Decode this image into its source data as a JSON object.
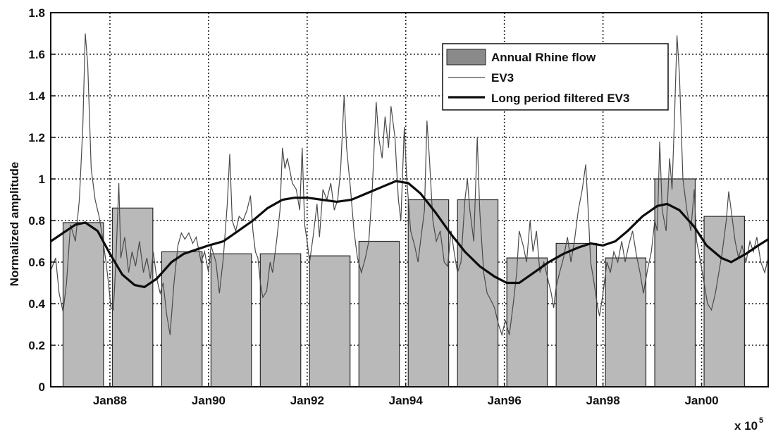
{
  "chart_data": {
    "type": "bar",
    "ylabel": "Normalized amplitude",
    "x_multiplier": "x 10",
    "x_multiplier_exponent": "5",
    "ylim": [
      0,
      1.8
    ],
    "yticks": [
      "0",
      "0.2",
      "0.4",
      "0.6",
      "0.8",
      "1",
      "1.2",
      "1.4",
      "1.6",
      "1.8"
    ],
    "x_tick_positions": [
      1988,
      1990,
      1992,
      1994,
      1996,
      1998,
      2000
    ],
    "x_tick_labels": [
      "Jan88",
      "Jan90",
      "Jan92",
      "Jan94",
      "Jan96",
      "Jan98",
      "Jan00"
    ],
    "xlim": [
      1986.8,
      2001.35
    ],
    "grid": true,
    "legend_position": "top-right",
    "bars": {
      "name": "Annual Rhine flow",
      "years": [
        1987,
        1988,
        1989,
        1990,
        1991,
        1992,
        1993,
        1994,
        1995,
        1996,
        1997,
        1998,
        1999,
        2000
      ],
      "values": [
        0.79,
        0.86,
        0.65,
        0.64,
        0.64,
        0.63,
        0.7,
        0.9,
        0.9,
        0.62,
        0.69,
        0.62,
        1.0,
        0.82
      ]
    },
    "series": [
      {
        "name": "EV3",
        "points": [
          [
            1986.8,
            0.56
          ],
          [
            1986.9,
            0.62
          ],
          [
            1986.97,
            0.45
          ],
          [
            1987.05,
            0.36
          ],
          [
            1987.12,
            0.5
          ],
          [
            1987.2,
            0.78
          ],
          [
            1987.3,
            0.7
          ],
          [
            1987.38,
            0.9
          ],
          [
            1987.45,
            1.25
          ],
          [
            1987.5,
            1.7
          ],
          [
            1987.55,
            1.55
          ],
          [
            1987.62,
            1.05
          ],
          [
            1987.7,
            0.9
          ],
          [
            1987.78,
            0.82
          ],
          [
            1987.85,
            0.72
          ],
          [
            1987.92,
            0.6
          ],
          [
            1987.97,
            0.5
          ],
          [
            1988.02,
            0.38
          ],
          [
            1988.07,
            0.37
          ],
          [
            1988.12,
            0.6
          ],
          [
            1988.18,
            0.98
          ],
          [
            1988.22,
            0.62
          ],
          [
            1988.3,
            0.72
          ],
          [
            1988.38,
            0.55
          ],
          [
            1988.45,
            0.65
          ],
          [
            1988.52,
            0.58
          ],
          [
            1988.6,
            0.7
          ],
          [
            1988.68,
            0.55
          ],
          [
            1988.75,
            0.62
          ],
          [
            1988.82,
            0.52
          ],
          [
            1988.88,
            0.65
          ],
          [
            1988.95,
            0.52
          ],
          [
            1989.02,
            0.45
          ],
          [
            1989.08,
            0.5
          ],
          [
            1989.15,
            0.35
          ],
          [
            1989.22,
            0.25
          ],
          [
            1989.3,
            0.5
          ],
          [
            1989.38,
            0.68
          ],
          [
            1989.45,
            0.74
          ],
          [
            1989.52,
            0.71
          ],
          [
            1989.6,
            0.74
          ],
          [
            1989.68,
            0.69
          ],
          [
            1989.75,
            0.72
          ],
          [
            1989.85,
            0.6
          ],
          [
            1989.92,
            0.65
          ],
          [
            1990.0,
            0.55
          ],
          [
            1990.05,
            0.68
          ],
          [
            1990.15,
            0.6
          ],
          [
            1990.22,
            0.45
          ],
          [
            1990.3,
            0.62
          ],
          [
            1990.38,
            0.88
          ],
          [
            1990.43,
            1.12
          ],
          [
            1990.48,
            0.8
          ],
          [
            1990.55,
            0.75
          ],
          [
            1990.62,
            0.82
          ],
          [
            1990.7,
            0.8
          ],
          [
            1990.78,
            0.85
          ],
          [
            1990.85,
            0.92
          ],
          [
            1990.9,
            0.75
          ],
          [
            1990.95,
            0.65
          ],
          [
            1991.0,
            0.62
          ],
          [
            1991.05,
            0.5
          ],
          [
            1991.1,
            0.43
          ],
          [
            1991.18,
            0.46
          ],
          [
            1991.25,
            0.6
          ],
          [
            1991.3,
            0.55
          ],
          [
            1991.38,
            0.7
          ],
          [
            1991.45,
            0.85
          ],
          [
            1991.5,
            1.15
          ],
          [
            1991.55,
            1.05
          ],
          [
            1991.6,
            1.1
          ],
          [
            1991.7,
            0.98
          ],
          [
            1991.78,
            0.95
          ],
          [
            1991.85,
            0.85
          ],
          [
            1991.9,
            1.15
          ],
          [
            1991.95,
            0.78
          ],
          [
            1992.0,
            0.7
          ],
          [
            1992.05,
            0.6
          ],
          [
            1992.12,
            0.72
          ],
          [
            1992.2,
            0.88
          ],
          [
            1992.25,
            0.72
          ],
          [
            1992.32,
            0.95
          ],
          [
            1992.4,
            0.9
          ],
          [
            1992.48,
            0.98
          ],
          [
            1992.55,
            0.85
          ],
          [
            1992.62,
            0.9
          ],
          [
            1992.68,
            1.05
          ],
          [
            1992.75,
            1.4
          ],
          [
            1992.8,
            1.15
          ],
          [
            1992.88,
            0.95
          ],
          [
            1992.95,
            0.75
          ],
          [
            1993.02,
            0.62
          ],
          [
            1993.1,
            0.55
          ],
          [
            1993.18,
            0.62
          ],
          [
            1993.25,
            0.7
          ],
          [
            1993.32,
            0.95
          ],
          [
            1993.4,
            1.37
          ],
          [
            1993.45,
            1.2
          ],
          [
            1993.52,
            1.1
          ],
          [
            1993.58,
            1.3
          ],
          [
            1993.65,
            1.15
          ],
          [
            1993.7,
            1.35
          ],
          [
            1993.78,
            1.2
          ],
          [
            1993.85,
            0.9
          ],
          [
            1993.9,
            0.8
          ],
          [
            1993.97,
            1.25
          ],
          [
            1994.02,
            1.0
          ],
          [
            1994.1,
            0.75
          ],
          [
            1994.18,
            0.68
          ],
          [
            1994.25,
            0.6
          ],
          [
            1994.3,
            0.7
          ],
          [
            1994.38,
            0.85
          ],
          [
            1994.43,
            1.28
          ],
          [
            1994.48,
            1.1
          ],
          [
            1994.55,
            0.8
          ],
          [
            1994.62,
            0.7
          ],
          [
            1994.7,
            0.75
          ],
          [
            1994.78,
            0.6
          ],
          [
            1994.85,
            0.58
          ],
          [
            1994.92,
            0.75
          ],
          [
            1994.98,
            0.65
          ],
          [
            1995.05,
            0.55
          ],
          [
            1995.12,
            0.6
          ],
          [
            1995.2,
            0.9
          ],
          [
            1995.25,
            1.0
          ],
          [
            1995.3,
            0.85
          ],
          [
            1995.38,
            0.7
          ],
          [
            1995.45,
            1.2
          ],
          [
            1995.5,
            0.85
          ],
          [
            1995.58,
            0.55
          ],
          [
            1995.65,
            0.45
          ],
          [
            1995.72,
            0.42
          ],
          [
            1995.8,
            0.38
          ],
          [
            1995.88,
            0.3
          ],
          [
            1995.95,
            0.25
          ],
          [
            1996.02,
            0.32
          ],
          [
            1996.1,
            0.25
          ],
          [
            1996.18,
            0.4
          ],
          [
            1996.25,
            0.55
          ],
          [
            1996.3,
            0.75
          ],
          [
            1996.38,
            0.68
          ],
          [
            1996.45,
            0.6
          ],
          [
            1996.52,
            0.8
          ],
          [
            1996.58,
            0.65
          ],
          [
            1996.65,
            0.75
          ],
          [
            1996.72,
            0.55
          ],
          [
            1996.8,
            0.6
          ],
          [
            1996.88,
            0.52
          ],
          [
            1996.95,
            0.45
          ],
          [
            1997.0,
            0.38
          ],
          [
            1997.05,
            0.48
          ],
          [
            1997.12,
            0.55
          ],
          [
            1997.2,
            0.62
          ],
          [
            1997.28,
            0.72
          ],
          [
            1997.35,
            0.6
          ],
          [
            1997.42,
            0.7
          ],
          [
            1997.5,
            0.85
          ],
          [
            1997.58,
            0.95
          ],
          [
            1997.65,
            1.07
          ],
          [
            1997.7,
            0.85
          ],
          [
            1997.75,
            0.6
          ],
          [
            1997.82,
            0.5
          ],
          [
            1997.88,
            0.4
          ],
          [
            1997.93,
            0.34
          ],
          [
            1998.0,
            0.45
          ],
          [
            1998.08,
            0.6
          ],
          [
            1998.15,
            0.55
          ],
          [
            1998.22,
            0.65
          ],
          [
            1998.3,
            0.6
          ],
          [
            1998.38,
            0.7
          ],
          [
            1998.45,
            0.6
          ],
          [
            1998.52,
            0.68
          ],
          [
            1998.6,
            0.75
          ],
          [
            1998.68,
            0.63
          ],
          [
            1998.75,
            0.55
          ],
          [
            1998.82,
            0.45
          ],
          [
            1998.9,
            0.56
          ],
          [
            1998.98,
            0.65
          ],
          [
            1999.05,
            0.8
          ],
          [
            1999.1,
            0.75
          ],
          [
            1999.15,
            1.18
          ],
          [
            1999.2,
            0.85
          ],
          [
            1999.28,
            0.75
          ],
          [
            1999.35,
            1.1
          ],
          [
            1999.4,
            0.95
          ],
          [
            1999.45,
            1.3
          ],
          [
            1999.5,
            1.69
          ],
          [
            1999.55,
            1.5
          ],
          [
            1999.62,
            1.0
          ],
          [
            1999.7,
            0.85
          ],
          [
            1999.78,
            0.75
          ],
          [
            1999.85,
            0.95
          ],
          [
            1999.9,
            0.7
          ],
          [
            1999.98,
            0.6
          ],
          [
            2000.05,
            0.5
          ],
          [
            2000.12,
            0.4
          ],
          [
            2000.2,
            0.37
          ],
          [
            2000.28,
            0.45
          ],
          [
            2000.35,
            0.55
          ],
          [
            2000.42,
            0.65
          ],
          [
            2000.5,
            0.8
          ],
          [
            2000.55,
            0.94
          ],
          [
            2000.6,
            0.85
          ],
          [
            2000.68,
            0.7
          ],
          [
            2000.75,
            0.62
          ],
          [
            2000.82,
            0.68
          ],
          [
            2000.9,
            0.6
          ],
          [
            2000.98,
            0.7
          ],
          [
            2001.05,
            0.65
          ],
          [
            2001.12,
            0.72
          ],
          [
            2001.2,
            0.6
          ],
          [
            2001.28,
            0.55
          ],
          [
            2001.35,
            0.62
          ]
        ]
      },
      {
        "name": "Long period filtered EV3",
        "points": [
          [
            1986.8,
            0.7
          ],
          [
            1987.05,
            0.74
          ],
          [
            1987.3,
            0.78
          ],
          [
            1987.5,
            0.79
          ],
          [
            1987.75,
            0.75
          ],
          [
            1988.0,
            0.64
          ],
          [
            1988.25,
            0.54
          ],
          [
            1988.5,
            0.49
          ],
          [
            1988.7,
            0.48
          ],
          [
            1988.95,
            0.52
          ],
          [
            1989.25,
            0.6
          ],
          [
            1989.5,
            0.64
          ],
          [
            1989.75,
            0.66
          ],
          [
            1990.0,
            0.68
          ],
          [
            1990.3,
            0.7
          ],
          [
            1990.6,
            0.75
          ],
          [
            1990.9,
            0.8
          ],
          [
            1991.2,
            0.86
          ],
          [
            1991.5,
            0.9
          ],
          [
            1991.75,
            0.91
          ],
          [
            1992.0,
            0.91
          ],
          [
            1992.3,
            0.9
          ],
          [
            1992.6,
            0.89
          ],
          [
            1992.9,
            0.9
          ],
          [
            1993.2,
            0.93
          ],
          [
            1993.5,
            0.96
          ],
          [
            1993.8,
            0.99
          ],
          [
            1994.05,
            0.98
          ],
          [
            1994.3,
            0.93
          ],
          [
            1994.6,
            0.84
          ],
          [
            1994.9,
            0.74
          ],
          [
            1995.2,
            0.65
          ],
          [
            1995.5,
            0.58
          ],
          [
            1995.8,
            0.53
          ],
          [
            1996.05,
            0.5
          ],
          [
            1996.3,
            0.5
          ],
          [
            1996.6,
            0.55
          ],
          [
            1996.9,
            0.6
          ],
          [
            1997.2,
            0.64
          ],
          [
            1997.5,
            0.67
          ],
          [
            1997.75,
            0.69
          ],
          [
            1998.0,
            0.68
          ],
          [
            1998.25,
            0.7
          ],
          [
            1998.5,
            0.75
          ],
          [
            1998.8,
            0.82
          ],
          [
            1999.1,
            0.87
          ],
          [
            1999.3,
            0.88
          ],
          [
            1999.55,
            0.85
          ],
          [
            1999.85,
            0.77
          ],
          [
            2000.1,
            0.68
          ],
          [
            2000.4,
            0.62
          ],
          [
            2000.6,
            0.6
          ],
          [
            2000.9,
            0.64
          ],
          [
            2001.15,
            0.68
          ],
          [
            2001.35,
            0.71
          ]
        ]
      }
    ],
    "legend": [
      "Annual Rhine flow",
      "EV3",
      "Long period filtered EV3"
    ]
  }
}
